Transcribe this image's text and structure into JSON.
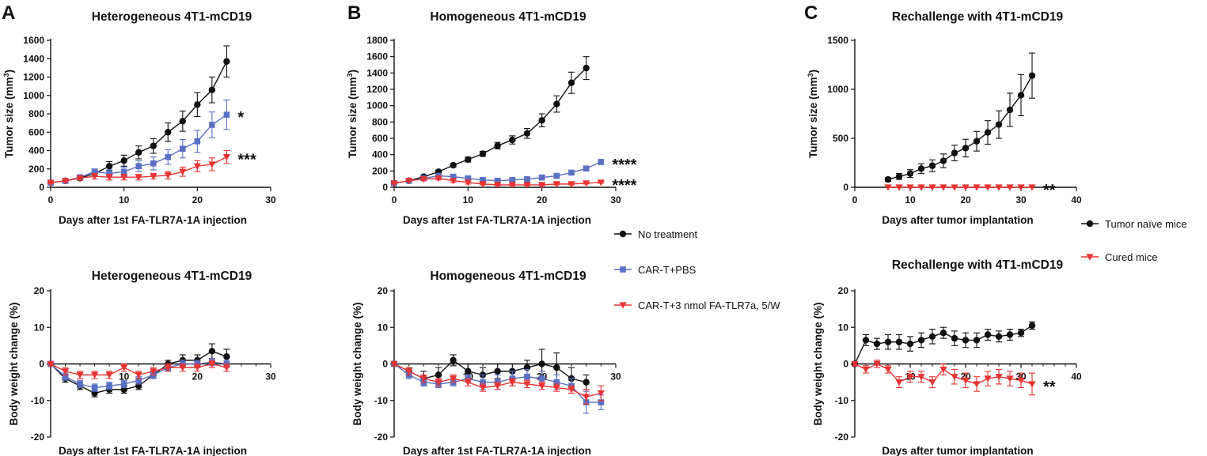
{
  "figure": {
    "series_styles": [
      {
        "name": "No treatment",
        "color": "#111111",
        "marker": "circle"
      },
      {
        "name": "CAR-T+PBS",
        "color": "#5b6fc4",
        "marker": "square"
      },
      {
        "name": "CAR-T+3 nmol FA-TLR7a, 5/W",
        "color": "#e83434",
        "marker": "triangle-down"
      }
    ],
    "legend_ab": [
      "No treatment",
      "CAR-T+PBS",
      "CAR-T+3 nmol FA-TLR7a, 5/W"
    ],
    "legend_c": [
      {
        "label": "Tumor naïve mice",
        "color": "#111111",
        "marker": "circle"
      },
      {
        "label": "Cured mice",
        "color": "#e83434",
        "marker": "triangle-down"
      }
    ]
  },
  "chart_data": [
    {
      "id": "A_top",
      "panel_label": "A",
      "type": "line",
      "title": "Heterogeneous 4T1-mCD19",
      "xlabel": "Days after 1st FA-TLR7A-1A injection",
      "ylabel": "Tumor size (mm",
      "ylabel_sup": "3",
      "ylabel_end": ")",
      "xlim": [
        0,
        30
      ],
      "ylim": [
        0,
        1600
      ],
      "xticks": [
        0,
        10,
        20,
        30
      ],
      "yticks": [
        0,
        200,
        400,
        600,
        800,
        1000,
        1200,
        1400,
        1600
      ],
      "series": [
        {
          "name": "No treatment",
          "x": [
            0,
            2,
            4,
            6,
            8,
            10,
            12,
            14,
            16,
            18,
            20,
            22,
            24
          ],
          "values": [
            50,
            70,
            100,
            150,
            230,
            290,
            380,
            450,
            600,
            720,
            900,
            1060,
            1370
          ],
          "err": [
            10,
            10,
            20,
            30,
            50,
            60,
            70,
            80,
            100,
            110,
            130,
            140,
            170
          ]
        },
        {
          "name": "CAR-T+PBS",
          "x": [
            0,
            2,
            4,
            6,
            8,
            10,
            12,
            14,
            16,
            18,
            20,
            22,
            24
          ],
          "values": [
            50,
            70,
            110,
            170,
            150,
            170,
            230,
            260,
            330,
            420,
            500,
            680,
            790
          ],
          "err": [
            10,
            10,
            20,
            30,
            40,
            50,
            60,
            70,
            80,
            100,
            120,
            140,
            160
          ]
        },
        {
          "name": "CAR-T+3 nmol FA-TLR7a, 5/W",
          "x": [
            0,
            2,
            4,
            6,
            8,
            10,
            12,
            14,
            16,
            18,
            20,
            22,
            24
          ],
          "values": [
            50,
            70,
            100,
            120,
            110,
            110,
            110,
            120,
            130,
            170,
            230,
            250,
            330
          ],
          "err": [
            10,
            10,
            20,
            30,
            30,
            30,
            30,
            30,
            40,
            50,
            60,
            70,
            70
          ]
        }
      ],
      "annotations": [
        {
          "text": "*",
          "series": "CAR-T+PBS"
        },
        {
          "text": "***",
          "series": "CAR-T+3 nmol FA-TLR7a, 5/W"
        }
      ]
    },
    {
      "id": "B_top",
      "panel_label": "B",
      "type": "line",
      "title": "Homogeneous 4T1-mCD19",
      "xlabel": "Days after 1st FA-TLR7A-1A injection",
      "ylabel": "Tumor size (mm",
      "ylabel_sup": "3",
      "ylabel_end": ")",
      "xlim": [
        0,
        30
      ],
      "ylim": [
        0,
        1800
      ],
      "xticks": [
        0,
        10,
        20,
        30
      ],
      "yticks": [
        0,
        200,
        400,
        600,
        800,
        1000,
        1200,
        1400,
        1600,
        1800
      ],
      "series": [
        {
          "name": "No treatment",
          "x": [
            0,
            2,
            4,
            6,
            8,
            10,
            12,
            14,
            16,
            18,
            20,
            22,
            24,
            26
          ],
          "values": [
            50,
            80,
            130,
            190,
            270,
            340,
            410,
            510,
            580,
            660,
            820,
            1020,
            1280,
            1460
          ],
          "err": [
            10,
            10,
            20,
            20,
            20,
            30,
            30,
            40,
            50,
            60,
            80,
            100,
            130,
            140
          ]
        },
        {
          "name": "CAR-T+PBS",
          "x": [
            0,
            2,
            4,
            6,
            8,
            10,
            12,
            14,
            16,
            18,
            20,
            22,
            24,
            26,
            28
          ],
          "values": [
            50,
            80,
            110,
            140,
            130,
            110,
            90,
            80,
            90,
            100,
            120,
            140,
            180,
            230,
            310
          ],
          "err": [
            10,
            10,
            20,
            20,
            20,
            20,
            20,
            20,
            20,
            20,
            20,
            20,
            20,
            20,
            30
          ]
        },
        {
          "name": "CAR-T+3 nmol FA-TLR7a, 5/W",
          "x": [
            0,
            2,
            4,
            6,
            8,
            10,
            12,
            14,
            16,
            18,
            20,
            22,
            24,
            26,
            28
          ],
          "values": [
            50,
            80,
            100,
            110,
            80,
            60,
            40,
            30,
            30,
            30,
            30,
            40,
            40,
            50,
            60
          ],
          "err": [
            10,
            10,
            20,
            20,
            20,
            20,
            10,
            10,
            10,
            10,
            10,
            10,
            10,
            10,
            10
          ]
        }
      ],
      "annotations": [
        {
          "text": "****",
          "series": "CAR-T+PBS"
        },
        {
          "text": "****",
          "series": "CAR-T+3 nmol FA-TLR7a, 5/W"
        }
      ]
    },
    {
      "id": "C_top",
      "panel_label": "C",
      "type": "line",
      "title": "Rechallenge with 4T1-mCD19",
      "xlabel": "Days after tumor implantation",
      "ylabel": "Tumor size (mm",
      "ylabel_sup": "3",
      "ylabel_end": ")",
      "xlim": [
        0,
        40
      ],
      "ylim": [
        0,
        1500
      ],
      "xticks": [
        0,
        10,
        20,
        30,
        40
      ],
      "yticks": [
        0,
        500,
        1000,
        1500
      ],
      "series": [
        {
          "name": "Tumor naïve mice",
          "x": [
            6,
            8,
            10,
            12,
            14,
            16,
            18,
            20,
            22,
            24,
            26,
            28,
            30,
            32
          ],
          "values": [
            80,
            110,
            140,
            190,
            220,
            270,
            350,
            400,
            470,
            560,
            640,
            790,
            940,
            1140
          ],
          "err": [
            20,
            30,
            40,
            50,
            60,
            70,
            80,
            90,
            100,
            120,
            140,
            170,
            210,
            230
          ]
        },
        {
          "name": "Cured mice",
          "x": [
            6,
            8,
            10,
            12,
            14,
            16,
            18,
            20,
            22,
            24,
            26,
            28,
            30,
            32
          ],
          "values": [
            0,
            0,
            0,
            0,
            0,
            0,
            0,
            0,
            0,
            0,
            0,
            0,
            0,
            0
          ],
          "err": [
            0,
            0,
            0,
            0,
            0,
            0,
            0,
            0,
            0,
            0,
            0,
            0,
            0,
            0
          ]
        }
      ],
      "annotations": [
        {
          "text": "**",
          "series": "Cured mice"
        }
      ]
    },
    {
      "id": "A_bottom",
      "type": "line",
      "title": "Heterogeneous 4T1-mCD19",
      "xlabel": "Days after 1st FA-TLR7A-1A injection",
      "ylabel": "Body weight change (%)",
      "xlim": [
        0,
        30
      ],
      "ylim": [
        -20,
        20
      ],
      "xticks": [
        10,
        20,
        30
      ],
      "yticks": [
        -20,
        -10,
        0,
        10,
        20
      ],
      "series": [
        {
          "name": "No treatment",
          "x": [
            0,
            2,
            4,
            6,
            8,
            10,
            12,
            14,
            16,
            18,
            20,
            22,
            24
          ],
          "values": [
            0,
            -4,
            -6,
            -8,
            -7,
            -7,
            -6,
            -3,
            0,
            1,
            1,
            3.5,
            2
          ],
          "err": [
            0.5,
            1,
            1,
            1,
            1,
            1,
            1,
            1,
            1,
            1.5,
            1.5,
            2,
            2
          ]
        },
        {
          "name": "CAR-T+PBS",
          "x": [
            0,
            2,
            4,
            6,
            8,
            10,
            12,
            14,
            16,
            18,
            20,
            22,
            24
          ],
          "values": [
            0,
            -3.5,
            -5.5,
            -6.5,
            -6,
            -5.5,
            -4.5,
            -3,
            -1,
            0,
            0,
            0.5,
            0
          ],
          "err": [
            0.5,
            1,
            1,
            1,
            1,
            1,
            1,
            1,
            1,
            1,
            1,
            1,
            1
          ]
        },
        {
          "name": "CAR-T+3 nmol FA-TLR7a, 5/W",
          "x": [
            0,
            2,
            4,
            6,
            8,
            10,
            12,
            14,
            16,
            18,
            20,
            22,
            24
          ],
          "values": [
            0,
            -2,
            -3,
            -3,
            -3,
            -1,
            -3,
            -2,
            -1,
            -1,
            -1,
            0,
            -1
          ],
          "err": [
            0.5,
            1,
            1,
            1,
            1,
            1,
            1,
            1,
            1,
            1,
            1,
            1,
            1
          ]
        }
      ]
    },
    {
      "id": "B_bottom",
      "type": "line",
      "title": "Homogeneous 4T1-mCD19",
      "xlabel": "Days after 1st FA-TLR7A-1A injection",
      "ylabel": "Body weight change (%)",
      "xlim": [
        0,
        30
      ],
      "ylim": [
        -20,
        20
      ],
      "xticks": [
        10,
        20,
        30
      ],
      "yticks": [
        -20,
        -10,
        0,
        10,
        20
      ],
      "series": [
        {
          "name": "No treatment",
          "x": [
            0,
            2,
            4,
            6,
            8,
            10,
            12,
            14,
            16,
            18,
            20,
            22,
            24,
            26
          ],
          "values": [
            0,
            -2,
            -4,
            -3,
            1,
            -2,
            -3,
            -2,
            -2,
            -1,
            0,
            -1,
            -4,
            -5
          ],
          "err": [
            0.5,
            1,
            2,
            2,
            1.5,
            2,
            2,
            2,
            2,
            2,
            4,
            4,
            3,
            2
          ]
        },
        {
          "name": "CAR-T+PBS",
          "x": [
            0,
            2,
            4,
            6,
            8,
            10,
            12,
            14,
            16,
            18,
            20,
            22,
            24,
            26,
            28
          ],
          "values": [
            0,
            -3,
            -5,
            -5.5,
            -5,
            -4,
            -5,
            -5,
            -4,
            -3.5,
            -4,
            -5,
            -6,
            -10.5,
            -10.5
          ],
          "err": [
            0.5,
            1,
            1,
            1,
            1,
            1,
            2,
            2,
            2,
            2,
            2,
            2,
            2,
            3,
            2
          ]
        },
        {
          "name": "CAR-T+3 nmol FA-TLR7a, 5/W",
          "x": [
            0,
            2,
            4,
            6,
            8,
            10,
            12,
            14,
            16,
            18,
            20,
            22,
            24,
            26,
            28
          ],
          "values": [
            0,
            -2,
            -4,
            -5,
            -4,
            -5,
            -6.5,
            -6,
            -5,
            -5.5,
            -6,
            -6.5,
            -7,
            -9,
            -8
          ],
          "err": [
            0.5,
            1,
            1,
            1,
            1,
            1,
            1,
            1,
            1,
            1,
            1,
            1,
            1,
            2,
            2
          ]
        }
      ]
    },
    {
      "id": "C_bottom",
      "type": "line",
      "title": "Rechallenge with 4T1-mCD19",
      "xlabel": "Days after tumor implantation",
      "ylabel": "Body weight change (%)",
      "xlim": [
        0,
        40
      ],
      "ylim": [
        -20,
        20
      ],
      "xticks": [
        10,
        20,
        30,
        40
      ],
      "yticks": [
        -20,
        -10,
        0,
        10,
        20
      ],
      "series": [
        {
          "name": "Tumor naïve mice",
          "x": [
            0,
            2,
            4,
            6,
            8,
            10,
            12,
            14,
            16,
            18,
            20,
            22,
            24,
            26,
            28,
            30,
            32
          ],
          "values": [
            0,
            6.5,
            5.5,
            6,
            6,
            5.5,
            6.5,
            7.5,
            8.5,
            7,
            6.5,
            6.5,
            8,
            7.5,
            8,
            8.5,
            10.5
          ],
          "err": [
            0.5,
            1.5,
            1.5,
            2,
            2,
            2,
            2,
            2,
            1.5,
            2,
            2,
            2,
            1.5,
            1.5,
            1.5,
            1,
            1
          ]
        },
        {
          "name": "Cured mice",
          "x": [
            0,
            2,
            4,
            6,
            8,
            10,
            12,
            14,
            16,
            18,
            20,
            22,
            24,
            26,
            28,
            30,
            32
          ],
          "values": [
            0,
            -1.5,
            0,
            -1.5,
            -5,
            -3.5,
            -3.5,
            -5,
            -1.5,
            -3.5,
            -4.5,
            -5.5,
            -4,
            -3.5,
            -4,
            -4.5,
            -5.5
          ],
          "err": [
            0.5,
            1,
            1,
            1,
            1.5,
            1.5,
            1.5,
            1.5,
            1.5,
            2,
            2,
            2,
            2,
            2,
            2,
            2,
            3
          ]
        }
      ],
      "annotations": [
        {
          "text": "**",
          "series": "Cured mice"
        }
      ]
    }
  ]
}
